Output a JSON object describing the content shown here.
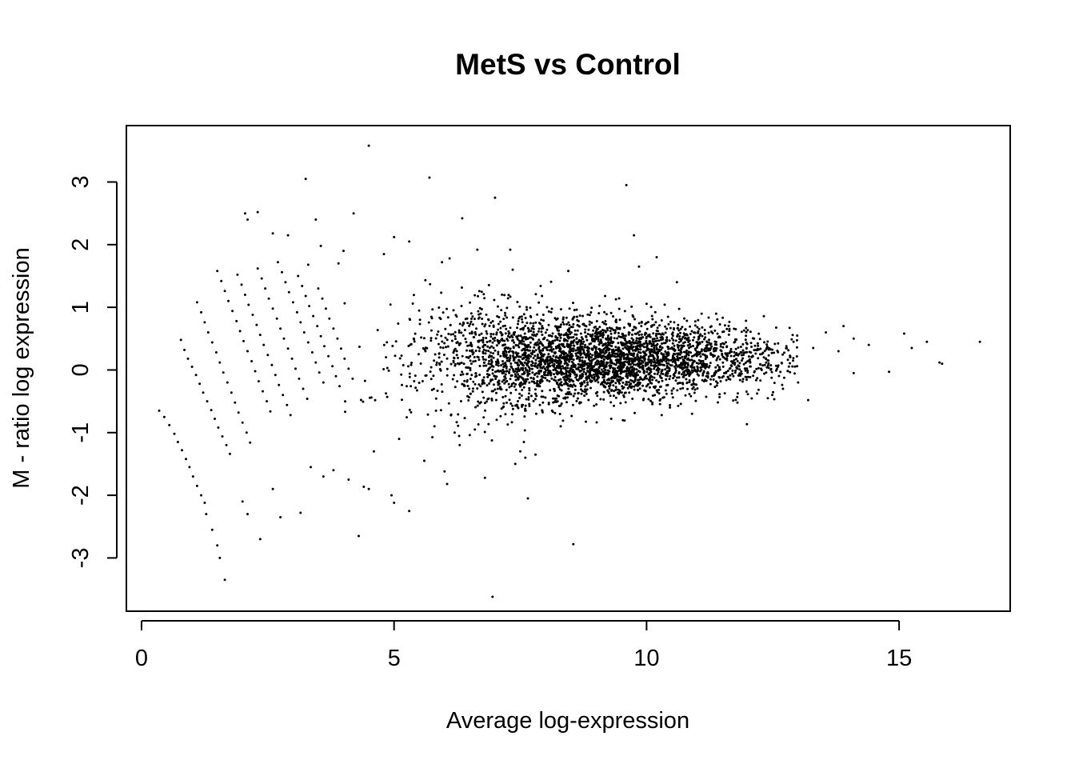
{
  "chart_data": {
    "type": "scatter",
    "title": "MetS vs Control",
    "xlabel": "Average log-expression",
    "ylabel": "M - ratio log expression",
    "xlim": [
      -0.3,
      17.2
    ],
    "ylim": [
      -3.85,
      3.9
    ],
    "xticks": [
      0,
      5,
      10,
      15
    ],
    "yticks": [
      -3,
      -2,
      -1,
      0,
      1,
      2,
      3
    ],
    "grid": false,
    "legend": "none",
    "point_color": "#000000",
    "series": [
      {
        "points": [
          [
            0.35,
            -0.65
          ],
          [
            0.45,
            -0.75
          ],
          [
            0.55,
            -0.88
          ],
          [
            0.65,
            -1.02
          ],
          [
            0.72,
            -1.15
          ],
          [
            0.8,
            -1.28
          ],
          [
            0.88,
            -1.42
          ],
          [
            0.95,
            -1.55
          ],
          [
            1.02,
            -1.7
          ],
          [
            1.1,
            -1.85
          ],
          [
            1.18,
            -2.0
          ],
          [
            1.25,
            -2.12
          ],
          [
            0.78,
            0.48
          ],
          [
            0.85,
            0.32
          ],
          [
            0.92,
            0.18
          ],
          [
            1.0,
            0.05
          ],
          [
            1.08,
            -0.08
          ],
          [
            1.15,
            -0.22
          ],
          [
            1.22,
            -0.36
          ],
          [
            1.3,
            -0.5
          ],
          [
            1.38,
            -0.64
          ],
          [
            1.45,
            -0.78
          ],
          [
            1.52,
            -0.92
          ],
          [
            1.6,
            -1.06
          ],
          [
            1.68,
            -1.2
          ],
          [
            1.75,
            -1.34
          ],
          [
            1.1,
            1.08
          ],
          [
            1.18,
            0.92
          ],
          [
            1.25,
            0.76
          ],
          [
            1.32,
            0.6
          ],
          [
            1.4,
            0.44
          ],
          [
            1.48,
            0.28
          ],
          [
            1.55,
            0.12
          ],
          [
            1.62,
            -0.04
          ],
          [
            1.7,
            -0.2
          ],
          [
            1.78,
            -0.36
          ],
          [
            1.85,
            -0.52
          ],
          [
            1.92,
            -0.68
          ],
          [
            2.0,
            -0.84
          ],
          [
            2.08,
            -1.0
          ],
          [
            2.15,
            -1.16
          ],
          [
            1.5,
            1.58
          ],
          [
            1.58,
            1.42
          ],
          [
            1.65,
            1.26
          ],
          [
            1.72,
            1.1
          ],
          [
            1.8,
            0.94
          ],
          [
            1.88,
            0.78
          ],
          [
            1.95,
            0.62
          ],
          [
            2.02,
            0.46
          ],
          [
            2.1,
            0.3
          ],
          [
            2.18,
            0.14
          ],
          [
            2.25,
            -0.02
          ],
          [
            2.32,
            -0.18
          ],
          [
            2.4,
            -0.34
          ],
          [
            2.48,
            -0.5
          ],
          [
            2.55,
            -0.66
          ],
          [
            1.9,
            1.52
          ],
          [
            1.98,
            1.36
          ],
          [
            2.05,
            1.2
          ],
          [
            2.12,
            1.04
          ],
          [
            2.2,
            0.88
          ],
          [
            2.28,
            0.72
          ],
          [
            2.35,
            0.56
          ],
          [
            2.42,
            0.4
          ],
          [
            2.5,
            0.24
          ],
          [
            2.58,
            0.08
          ],
          [
            2.65,
            -0.08
          ],
          [
            2.72,
            -0.24
          ],
          [
            2.8,
            -0.4
          ],
          [
            2.88,
            -0.56
          ],
          [
            2.95,
            -0.72
          ],
          [
            2.3,
            1.62
          ],
          [
            2.38,
            1.46
          ],
          [
            2.45,
            1.3
          ],
          [
            2.52,
            1.14
          ],
          [
            2.6,
            0.98
          ],
          [
            2.68,
            0.82
          ],
          [
            2.75,
            0.66
          ],
          [
            2.82,
            0.5
          ],
          [
            2.9,
            0.34
          ],
          [
            2.98,
            0.18
          ],
          [
            3.05,
            0.02
          ],
          [
            3.12,
            -0.14
          ],
          [
            3.2,
            -0.3
          ],
          [
            3.28,
            -0.46
          ],
          [
            2.7,
            1.72
          ],
          [
            2.78,
            1.56
          ],
          [
            2.85,
            1.4
          ],
          [
            2.92,
            1.24
          ],
          [
            3.0,
            1.08
          ],
          [
            3.08,
            0.92
          ],
          [
            3.15,
            0.76
          ],
          [
            3.22,
            0.6
          ],
          [
            3.3,
            0.44
          ],
          [
            3.38,
            0.28
          ],
          [
            3.45,
            0.12
          ],
          [
            3.52,
            -0.04
          ],
          [
            3.6,
            -0.2
          ],
          [
            3.1,
            1.5
          ],
          [
            3.18,
            1.34
          ],
          [
            3.25,
            1.18
          ],
          [
            3.32,
            1.02
          ],
          [
            3.4,
            0.86
          ],
          [
            3.48,
            0.7
          ],
          [
            3.55,
            0.54
          ],
          [
            3.62,
            0.38
          ],
          [
            3.7,
            0.22
          ],
          [
            3.78,
            0.06
          ],
          [
            3.85,
            -0.1
          ],
          [
            3.92,
            -0.26
          ],
          [
            3.5,
            1.3
          ],
          [
            3.58,
            1.14
          ],
          [
            3.65,
            0.98
          ],
          [
            3.72,
            0.82
          ],
          [
            3.8,
            0.66
          ],
          [
            3.88,
            0.5
          ],
          [
            3.95,
            0.34
          ],
          [
            4.02,
            0.18
          ],
          [
            4.1,
            0.02
          ],
          [
            4.18,
            -0.14
          ],
          [
            1.28,
            -2.3
          ],
          [
            1.4,
            -2.55
          ],
          [
            1.5,
            -2.8
          ],
          [
            1.55,
            -3.0
          ],
          [
            1.65,
            -3.35
          ],
          [
            2.0,
            -2.1
          ],
          [
            2.1,
            -2.3
          ],
          [
            2.35,
            -2.7
          ],
          [
            2.6,
            -1.9
          ],
          [
            2.75,
            -2.35
          ],
          [
            3.15,
            -2.28
          ],
          [
            3.35,
            -1.55
          ],
          [
            3.6,
            -1.7
          ],
          [
            3.8,
            -1.6
          ],
          [
            4.1,
            -1.75
          ],
          [
            2.05,
            2.5
          ],
          [
            2.1,
            2.4
          ],
          [
            2.3,
            2.52
          ],
          [
            2.6,
            2.18
          ],
          [
            2.9,
            2.15
          ],
          [
            3.25,
            3.05
          ],
          [
            3.45,
            2.4
          ],
          [
            3.55,
            1.98
          ],
          [
            3.3,
            1.68
          ],
          [
            4.2,
            2.5
          ],
          [
            4.5,
            3.58
          ],
          [
            5.0,
            2.12
          ],
          [
            5.3,
            2.05
          ],
          [
            4.8,
            1.85
          ],
          [
            4.0,
            1.9
          ],
          [
            3.9,
            1.7
          ],
          [
            5.7,
            3.07
          ],
          [
            7.0,
            2.75
          ],
          [
            6.35,
            2.42
          ],
          [
            9.6,
            2.95
          ],
          [
            9.75,
            2.15
          ],
          [
            10.2,
            1.8
          ],
          [
            9.85,
            1.65
          ],
          [
            7.3,
            1.92
          ],
          [
            7.35,
            1.6
          ],
          [
            8.45,
            1.58
          ],
          [
            6.1,
            1.78
          ],
          [
            5.95,
            1.72
          ],
          [
            6.65,
            1.92
          ],
          [
            10.6,
            1.4
          ],
          [
            4.3,
            -2.65
          ],
          [
            4.5,
            -1.9
          ],
          [
            4.95,
            -2.0
          ],
          [
            5.0,
            -2.12
          ],
          [
            5.3,
            -2.25
          ],
          [
            6.0,
            -1.62
          ],
          [
            6.05,
            -1.82
          ],
          [
            5.6,
            -1.45
          ],
          [
            6.8,
            -1.72
          ],
          [
            6.95,
            -3.62
          ],
          [
            7.65,
            -2.05
          ],
          [
            8.55,
            -2.78
          ],
          [
            7.5,
            -1.3
          ],
          [
            7.6,
            -1.4
          ],
          [
            7.8,
            -1.35
          ],
          [
            7.4,
            -1.5
          ],
          [
            6.3,
            -1.2
          ],
          [
            5.1,
            -1.1
          ],
          [
            4.6,
            -1.3
          ],
          [
            5.8,
            -0.9
          ],
          [
            6.2,
            -1.0
          ],
          [
            6.6,
            -0.95
          ],
          [
            8.3,
            -0.9
          ],
          [
            9.3,
            -0.78
          ],
          [
            10.3,
            -0.72
          ],
          [
            10.9,
            -0.7
          ],
          [
            11.8,
            -0.52
          ],
          [
            12.4,
            -0.45
          ],
          [
            12.7,
            -0.3
          ],
          [
            13.2,
            -0.48
          ],
          [
            13.55,
            0.6
          ],
          [
            13.9,
            0.7
          ],
          [
            14.1,
            0.5
          ],
          [
            14.4,
            0.4
          ],
          [
            14.1,
            -0.05
          ],
          [
            14.8,
            -0.03
          ],
          [
            15.1,
            0.58
          ],
          [
            15.25,
            0.35
          ],
          [
            15.55,
            0.45
          ],
          [
            15.8,
            0.12
          ],
          [
            15.85,
            0.1
          ],
          [
            16.6,
            0.45
          ],
          [
            13.8,
            0.3
          ],
          [
            13.3,
            0.35
          ],
          [
            12.9,
            0.15
          ],
          [
            12.6,
            0.05
          ],
          [
            13.0,
            -0.2
          ]
        ]
      }
    ],
    "generated_cloud": {
      "n": 3600,
      "center_x": 9.0,
      "spread_x": 1.7,
      "center_y": 0.18,
      "spread_y": 0.32,
      "x_range": [
        4.0,
        13.0
      ],
      "seed": 7
    }
  }
}
